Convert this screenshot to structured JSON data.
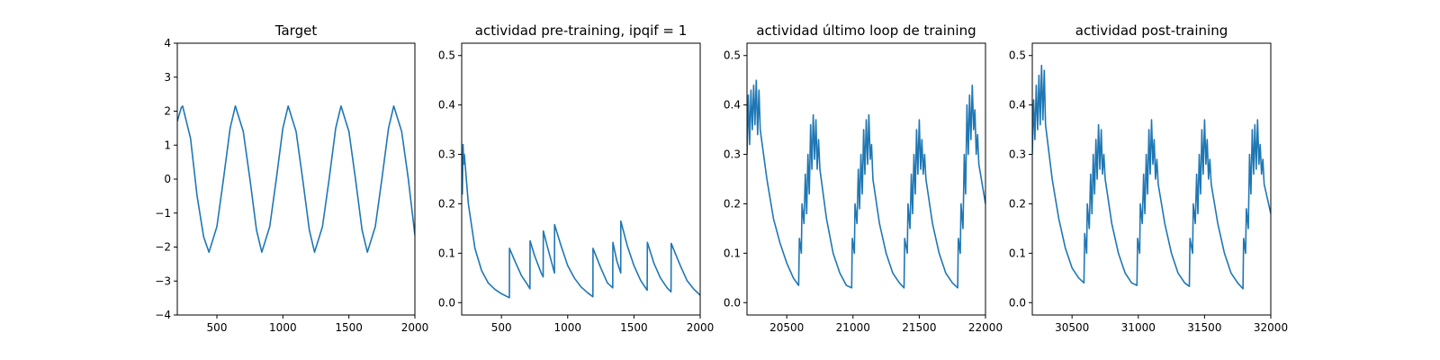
{
  "chart_data": [
    {
      "type": "line",
      "title": "Target",
      "xlabel": "",
      "ylabel": "",
      "xlim": [
        200,
        2000
      ],
      "ylim": [
        -4,
        4
      ],
      "xticks": [
        500,
        1000,
        1500,
        2000
      ],
      "yticks": [
        -4,
        -3,
        -2,
        -1,
        0,
        1,
        2,
        3,
        4
      ],
      "color": "#1f77b4",
      "series": [
        {
          "x": [
            200,
            230,
            240,
            300,
            350,
            400,
            440,
            500,
            550,
            600,
            640,
            700,
            750,
            800,
            840,
            900,
            950,
            1000,
            1040,
            1100,
            1150,
            1200,
            1240,
            1300,
            1350,
            1400,
            1440,
            1500,
            1550,
            1600,
            1640,
            1700,
            1750,
            1800,
            1840,
            1900,
            1950,
            2000
          ],
          "y": [
            1.7,
            2.1,
            2.15,
            1.2,
            -0.5,
            -1.7,
            -2.15,
            -1.4,
            0.0,
            1.5,
            2.15,
            1.4,
            0.0,
            -1.5,
            -2.15,
            -1.4,
            0.0,
            1.5,
            2.15,
            1.4,
            0.0,
            -1.5,
            -2.15,
            -1.4,
            0.0,
            1.5,
            2.15,
            1.4,
            0.0,
            -1.5,
            -2.15,
            -1.4,
            0.0,
            1.5,
            2.15,
            1.4,
            0.0,
            -1.65
          ]
        }
      ]
    },
    {
      "type": "line",
      "title": "actividad pre-training, ipqif = 1",
      "xlabel": "",
      "ylabel": "",
      "xlim": [
        200,
        2000
      ],
      "ylim": [
        -0.025,
        0.525
      ],
      "xticks": [
        500,
        1000,
        1500,
        2000
      ],
      "yticks": [
        0.0,
        0.1,
        0.2,
        0.3,
        0.4,
        0.5
      ],
      "color": "#1f77b4",
      "series": [
        {
          "x": [
            200,
            205,
            210,
            215,
            220,
            250,
            300,
            350,
            400,
            450,
            500,
            560,
            561,
            600,
            650,
            700,
            715,
            716,
            750,
            800,
            815,
            816,
            850,
            900,
            901,
            950,
            1000,
            1050,
            1100,
            1150,
            1190,
            1191,
            1250,
            1300,
            1340,
            1341,
            1370,
            1400,
            1401,
            1450,
            1500,
            1550,
            1600,
            1601,
            1650,
            1700,
            1750,
            1780,
            1781,
            1850,
            1900,
            1950,
            2000
          ],
          "y": [
            0.3,
            0.22,
            0.32,
            0.28,
            0.3,
            0.2,
            0.11,
            0.065,
            0.04,
            0.027,
            0.018,
            0.01,
            0.11,
            0.085,
            0.055,
            0.035,
            0.028,
            0.125,
            0.095,
            0.06,
            0.052,
            0.145,
            0.11,
            0.06,
            0.158,
            0.115,
            0.075,
            0.05,
            0.032,
            0.02,
            0.012,
            0.11,
            0.07,
            0.04,
            0.03,
            0.122,
            0.085,
            0.06,
            0.165,
            0.115,
            0.075,
            0.045,
            0.025,
            0.122,
            0.08,
            0.05,
            0.03,
            0.022,
            0.12,
            0.075,
            0.045,
            0.028,
            0.015
          ]
        }
      ]
    },
    {
      "type": "line",
      "title": "actividad último loop de training",
      "xlabel": "",
      "ylabel": "",
      "xlim": [
        20200,
        22000
      ],
      "ylim": [
        -0.025,
        0.525
      ],
      "xticks": [
        20500,
        21000,
        21500,
        22000
      ],
      "yticks": [
        0.0,
        0.1,
        0.2,
        0.3,
        0.4,
        0.5
      ],
      "color": "#1f77b4",
      "series": [
        {
          "x": [
            20200,
            20210,
            20220,
            20230,
            20240,
            20250,
            20260,
            20270,
            20280,
            20290,
            20300,
            20350,
            20400,
            20450,
            20500,
            20550,
            20590,
            20595,
            20610,
            20615,
            20630,
            20640,
            20650,
            20660,
            20670,
            20680,
            20690,
            20700,
            20710,
            20720,
            20730,
            20740,
            20750,
            20800,
            20850,
            20900,
            20950,
            20990,
            20995,
            21010,
            21015,
            21030,
            21040,
            21050,
            21060,
            21070,
            21080,
            21090,
            21100,
            21110,
            21120,
            21130,
            21140,
            21150,
            21200,
            21250,
            21300,
            21350,
            21385,
            21390,
            21410,
            21415,
            21430,
            21440,
            21450,
            21460,
            21470,
            21480,
            21490,
            21500,
            21510,
            21520,
            21530,
            21540,
            21550,
            21600,
            21650,
            21700,
            21750,
            21790,
            21795,
            21810,
            21815,
            21830,
            21840,
            21850,
            21860,
            21870,
            21880,
            21890,
            21900,
            21910,
            21920,
            21930,
            21940,
            21950,
            22000
          ],
          "y": [
            0.3,
            0.42,
            0.32,
            0.43,
            0.35,
            0.44,
            0.36,
            0.45,
            0.34,
            0.43,
            0.35,
            0.25,
            0.17,
            0.12,
            0.08,
            0.05,
            0.035,
            0.13,
            0.1,
            0.2,
            0.16,
            0.26,
            0.18,
            0.3,
            0.22,
            0.36,
            0.27,
            0.38,
            0.29,
            0.37,
            0.27,
            0.33,
            0.27,
            0.17,
            0.1,
            0.06,
            0.035,
            0.03,
            0.13,
            0.1,
            0.2,
            0.16,
            0.27,
            0.19,
            0.3,
            0.22,
            0.35,
            0.26,
            0.37,
            0.28,
            0.38,
            0.29,
            0.32,
            0.25,
            0.16,
            0.1,
            0.06,
            0.04,
            0.03,
            0.13,
            0.1,
            0.2,
            0.15,
            0.26,
            0.18,
            0.3,
            0.22,
            0.35,
            0.26,
            0.37,
            0.27,
            0.33,
            0.26,
            0.3,
            0.25,
            0.16,
            0.1,
            0.06,
            0.04,
            0.03,
            0.13,
            0.1,
            0.2,
            0.15,
            0.3,
            0.22,
            0.4,
            0.3,
            0.42,
            0.33,
            0.44,
            0.35,
            0.39,
            0.3,
            0.34,
            0.28,
            0.2
          ]
        }
      ]
    },
    {
      "type": "line",
      "title": "actividad post-training",
      "xlabel": "",
      "ylabel": "",
      "xlim": [
        30200,
        32000
      ],
      "ylim": [
        -0.025,
        0.525
      ],
      "xticks": [
        30500,
        31000,
        31500,
        32000
      ],
      "yticks": [
        0.0,
        0.1,
        0.2,
        0.3,
        0.4,
        0.5
      ],
      "color": "#1f77b4",
      "series": [
        {
          "x": [
            30200,
            30210,
            30220,
            30230,
            30240,
            30250,
            30260,
            30270,
            30280,
            30290,
            30300,
            30350,
            30400,
            30450,
            30500,
            30550,
            30590,
            30595,
            30610,
            30615,
            30630,
            30640,
            30650,
            30660,
            30670,
            30680,
            30690,
            30700,
            30710,
            30720,
            30730,
            30740,
            30750,
            30800,
            30850,
            30900,
            30950,
            30990,
            30995,
            31010,
            31015,
            31030,
            31040,
            31050,
            31060,
            31070,
            31080,
            31090,
            31100,
            31110,
            31120,
            31130,
            31140,
            31150,
            31200,
            31250,
            31300,
            31350,
            31385,
            31390,
            31410,
            31415,
            31430,
            31440,
            31450,
            31460,
            31470,
            31480,
            31490,
            31500,
            31510,
            31520,
            31530,
            31540,
            31550,
            31600,
            31650,
            31700,
            31750,
            31790,
            31795,
            31810,
            31815,
            31830,
            31840,
            31850,
            31860,
            31870,
            31880,
            31890,
            31900,
            31910,
            31920,
            31930,
            31940,
            31950,
            32000
          ],
          "y": [
            0.3,
            0.41,
            0.33,
            0.44,
            0.35,
            0.46,
            0.36,
            0.48,
            0.37,
            0.47,
            0.36,
            0.25,
            0.17,
            0.11,
            0.07,
            0.05,
            0.04,
            0.14,
            0.1,
            0.2,
            0.15,
            0.26,
            0.18,
            0.3,
            0.22,
            0.33,
            0.25,
            0.36,
            0.27,
            0.35,
            0.26,
            0.3,
            0.25,
            0.16,
            0.1,
            0.06,
            0.04,
            0.035,
            0.13,
            0.1,
            0.2,
            0.16,
            0.26,
            0.18,
            0.3,
            0.22,
            0.35,
            0.26,
            0.37,
            0.28,
            0.33,
            0.25,
            0.29,
            0.24,
            0.16,
            0.1,
            0.06,
            0.04,
            0.033,
            0.13,
            0.1,
            0.2,
            0.16,
            0.26,
            0.18,
            0.3,
            0.22,
            0.35,
            0.26,
            0.37,
            0.28,
            0.33,
            0.25,
            0.29,
            0.24,
            0.16,
            0.1,
            0.06,
            0.04,
            0.028,
            0.13,
            0.1,
            0.19,
            0.15,
            0.3,
            0.22,
            0.35,
            0.26,
            0.36,
            0.27,
            0.37,
            0.28,
            0.32,
            0.26,
            0.29,
            0.24,
            0.18
          ]
        }
      ]
    }
  ]
}
